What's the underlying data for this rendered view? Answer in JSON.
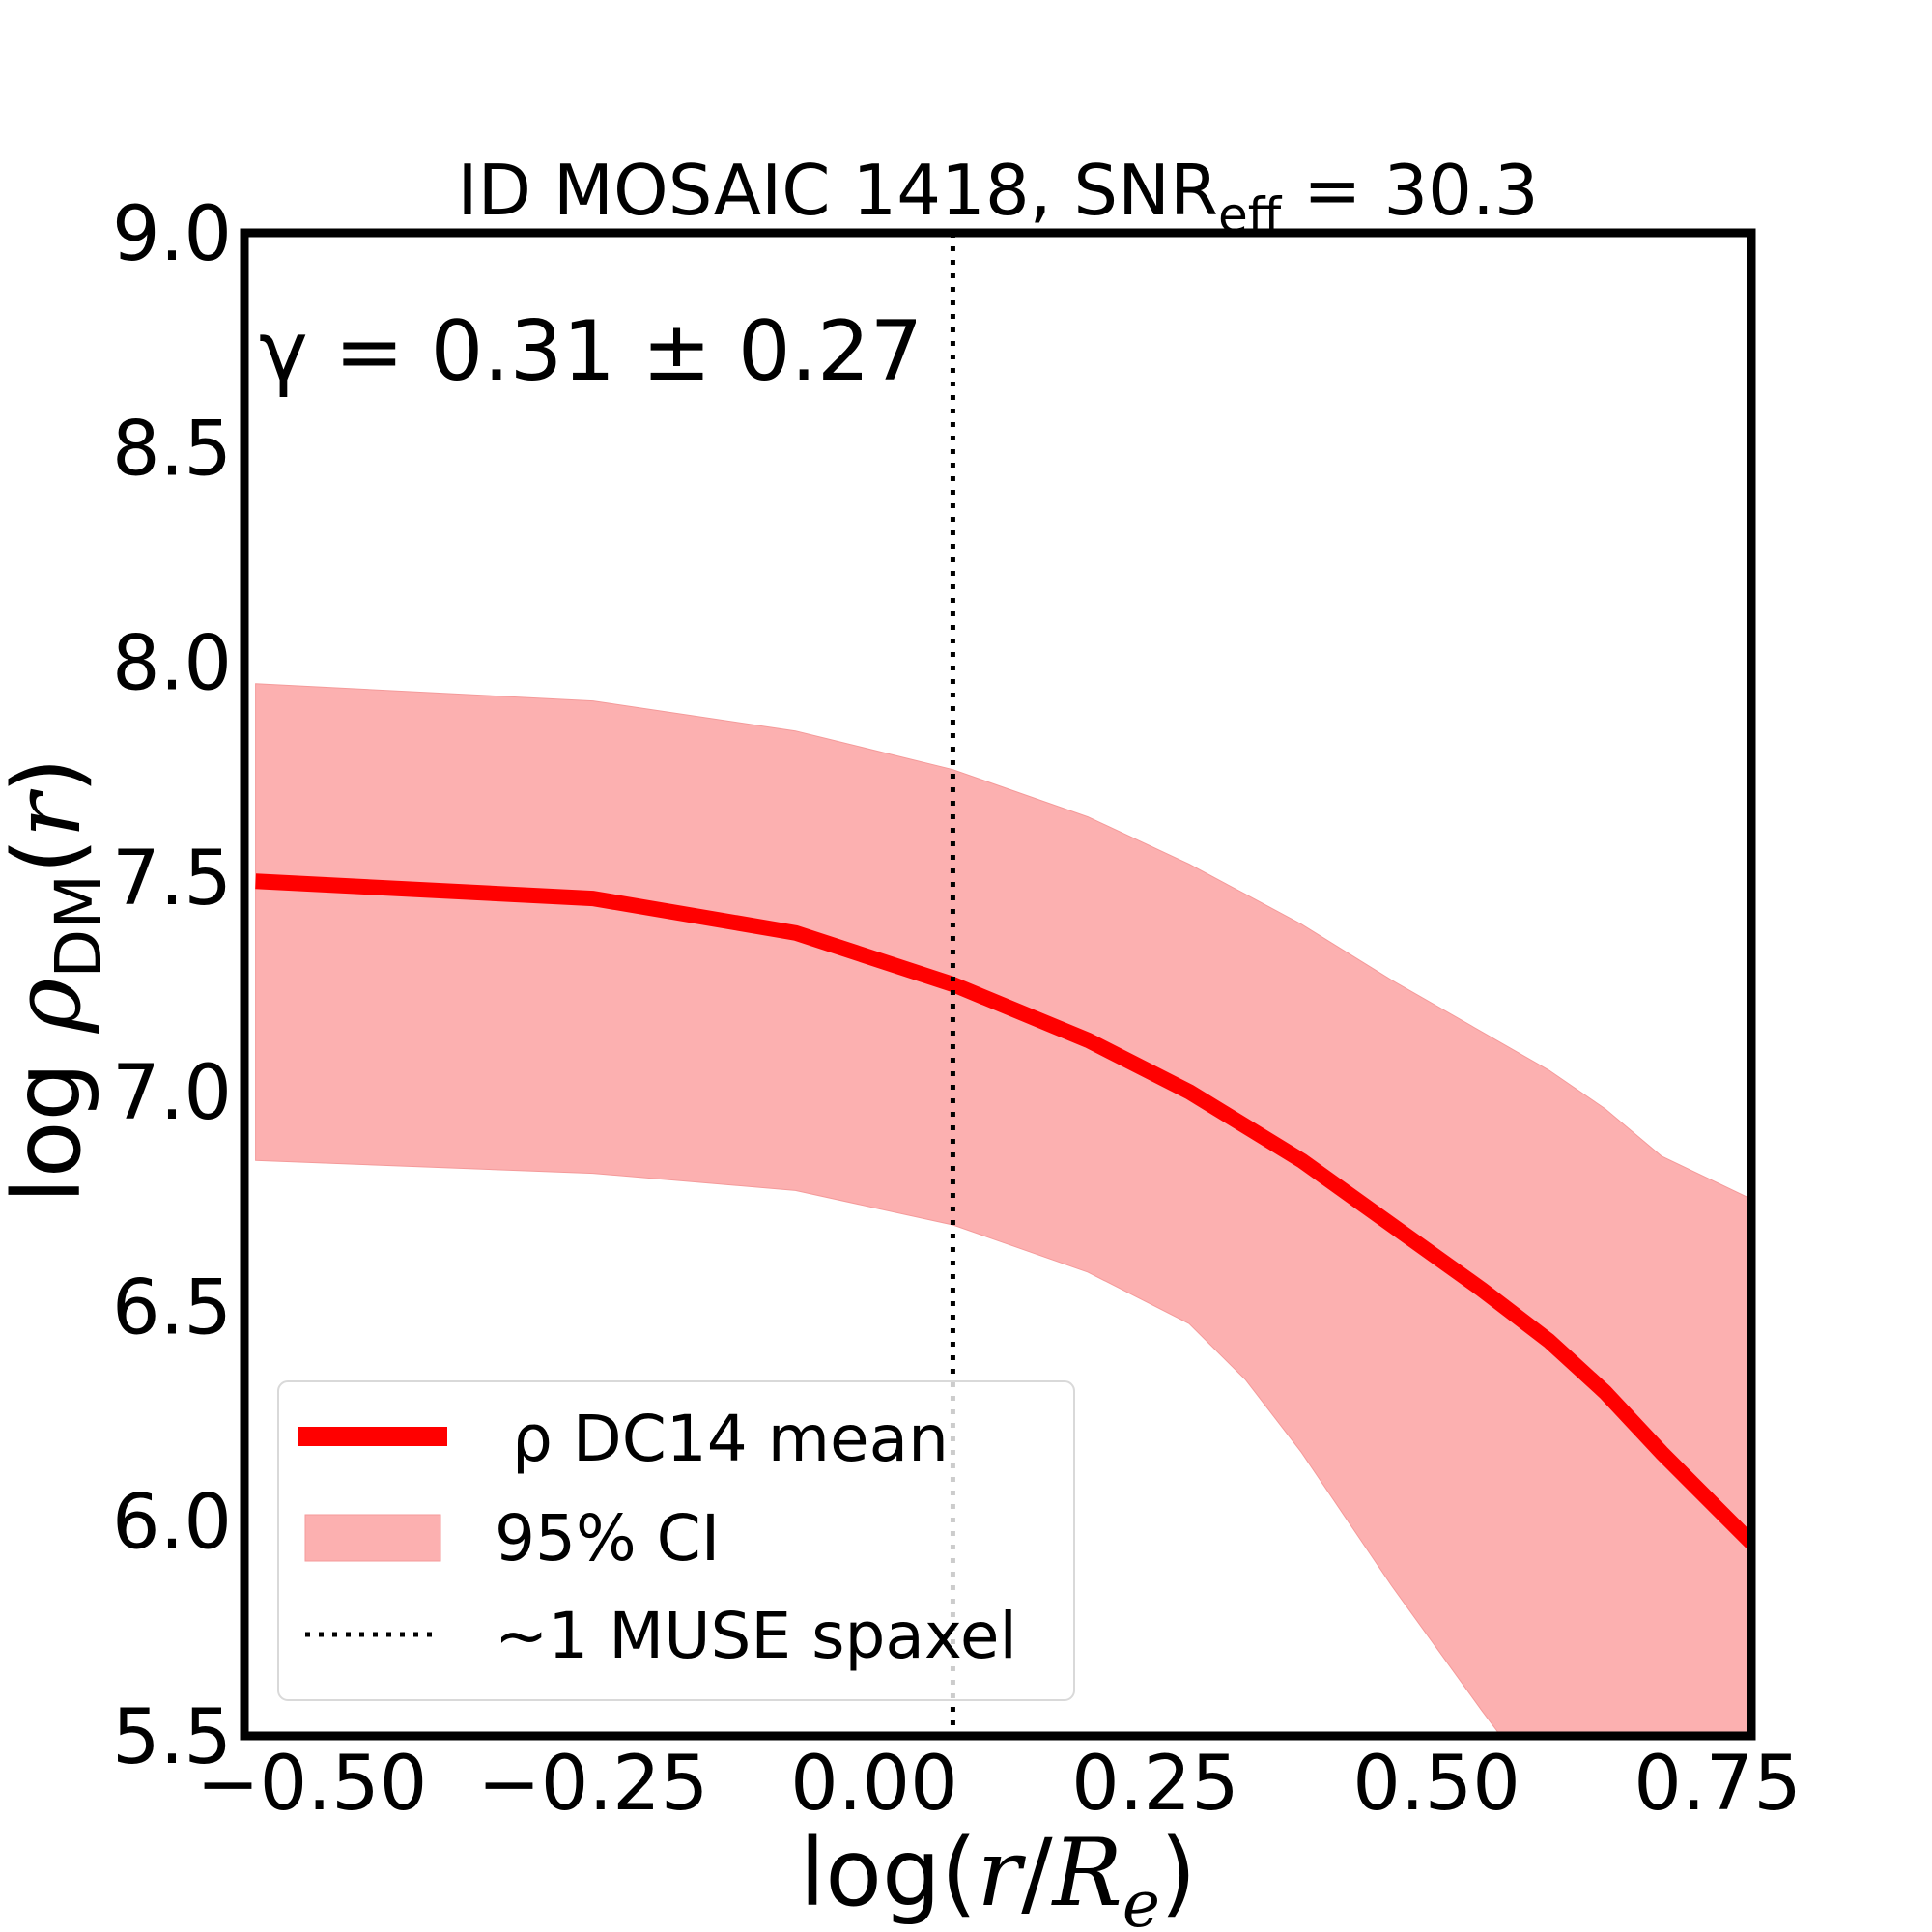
{
  "chart_data": {
    "type": "line",
    "title": {
      "main": "ID MOSAIC 1418, SNR",
      "subscript": "eff",
      "suffix": " = 30.3"
    },
    "xlabel": {
      "prefix": "log(",
      "var": "r",
      "slash": "/",
      "var2": "R",
      "sub": "e",
      "suffix": ")"
    },
    "ylabel": {
      "prefix": "log ",
      "var": "ρ",
      "sub": "DM",
      "suffix": "(",
      "var2": "r",
      "close": ")"
    },
    "annotation": "γ = 0.31 ± 0.27",
    "xlim": [
      -0.56,
      0.78
    ],
    "ylim": [
      5.5,
      9.0
    ],
    "xticks": [
      -0.5,
      -0.25,
      0.0,
      0.25,
      0.5,
      0.75
    ],
    "xtick_labels": [
      "−0.50",
      "−0.25",
      "0.00",
      "0.25",
      "0.50",
      "0.75"
    ],
    "yticks": [
      5.5,
      6.0,
      6.5,
      7.0,
      7.5,
      8.0,
      8.5,
      9.0
    ],
    "ytick_labels": [
      "5.5",
      "6.0",
      "6.5",
      "7.0",
      "7.5",
      "8.0",
      "8.5",
      "9.0"
    ],
    "grid": false,
    "legend_position": "lower-left",
    "series": [
      {
        "name": "ρ DC14 mean",
        "kind": "line",
        "color": "#ff0000",
        "x": [
          -0.55,
          -0.25,
          -0.07,
          0.07,
          0.19,
          0.28,
          0.38,
          0.46,
          0.54,
          0.6,
          0.65,
          0.7,
          0.78
        ],
        "y": [
          7.49,
          7.45,
          7.37,
          7.25,
          7.12,
          7.0,
          6.84,
          6.69,
          6.54,
          6.42,
          6.3,
          6.16,
          5.95
        ]
      },
      {
        "name": "95% CI",
        "kind": "band",
        "color": "#fcb0b0",
        "x": [
          -0.55,
          -0.25,
          -0.07,
          0.07,
          0.19,
          0.28,
          0.33,
          0.38,
          0.46,
          0.54,
          0.6,
          0.65,
          0.7,
          0.78
        ],
        "lower": [
          6.84,
          6.81,
          6.77,
          6.69,
          6.58,
          6.46,
          6.33,
          6.16,
          5.85,
          5.56,
          5.35,
          5.2,
          5.1,
          5.05
        ],
        "upper": [
          7.95,
          7.91,
          7.84,
          7.75,
          7.64,
          7.53,
          7.46,
          7.39,
          7.26,
          7.14,
          7.05,
          6.96,
          6.85,
          6.75
        ]
      },
      {
        "name": "~1 MUSE spaxel",
        "kind": "vline",
        "color": "#000000",
        "x": 0.07
      }
    ]
  }
}
